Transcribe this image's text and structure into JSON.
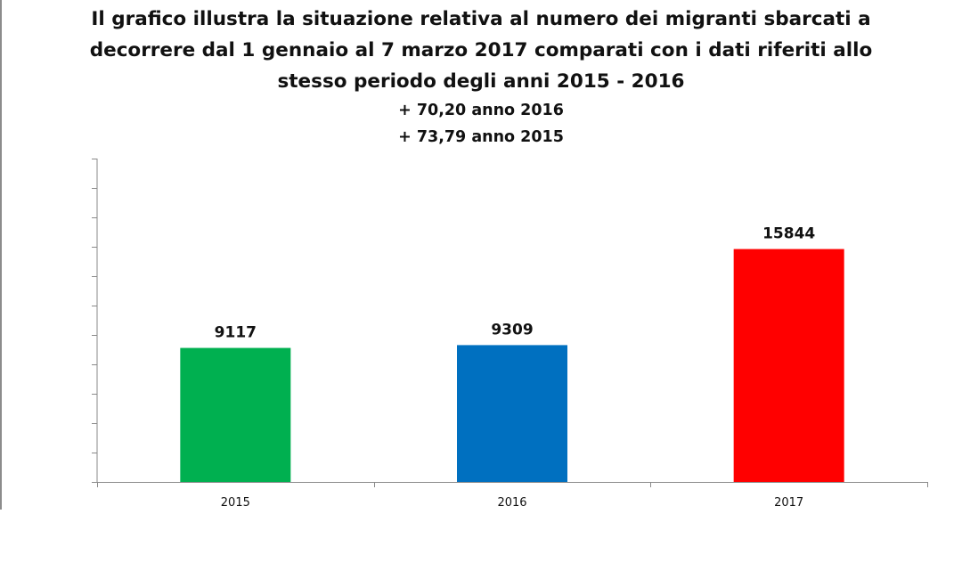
{
  "chart_data": {
    "type": "bar",
    "title_lines": [
      "Il grafico illustra la situazione relativa al numero dei migranti sbarcati a",
      "decorrere dal 1 gennaio al 7 marzo 2017 comparati con i dati riferiti allo",
      "stesso periodo degli anni 2015 - 2016"
    ],
    "subtitle_lines": [
      "+ 70,20 anno 2016",
      "+ 73,79 anno 2015"
    ],
    "categories": [
      "2015",
      "2016",
      "2017"
    ],
    "values": [
      9117,
      9309,
      15844
    ],
    "bar_colors": [
      "#00b050",
      "#0070c0",
      "#ff0000"
    ],
    "xlabel": "",
    "ylabel": "",
    "ylim": [
      0,
      22000
    ],
    "y_major_step": 2000,
    "grid": false,
    "legend": "none"
  }
}
